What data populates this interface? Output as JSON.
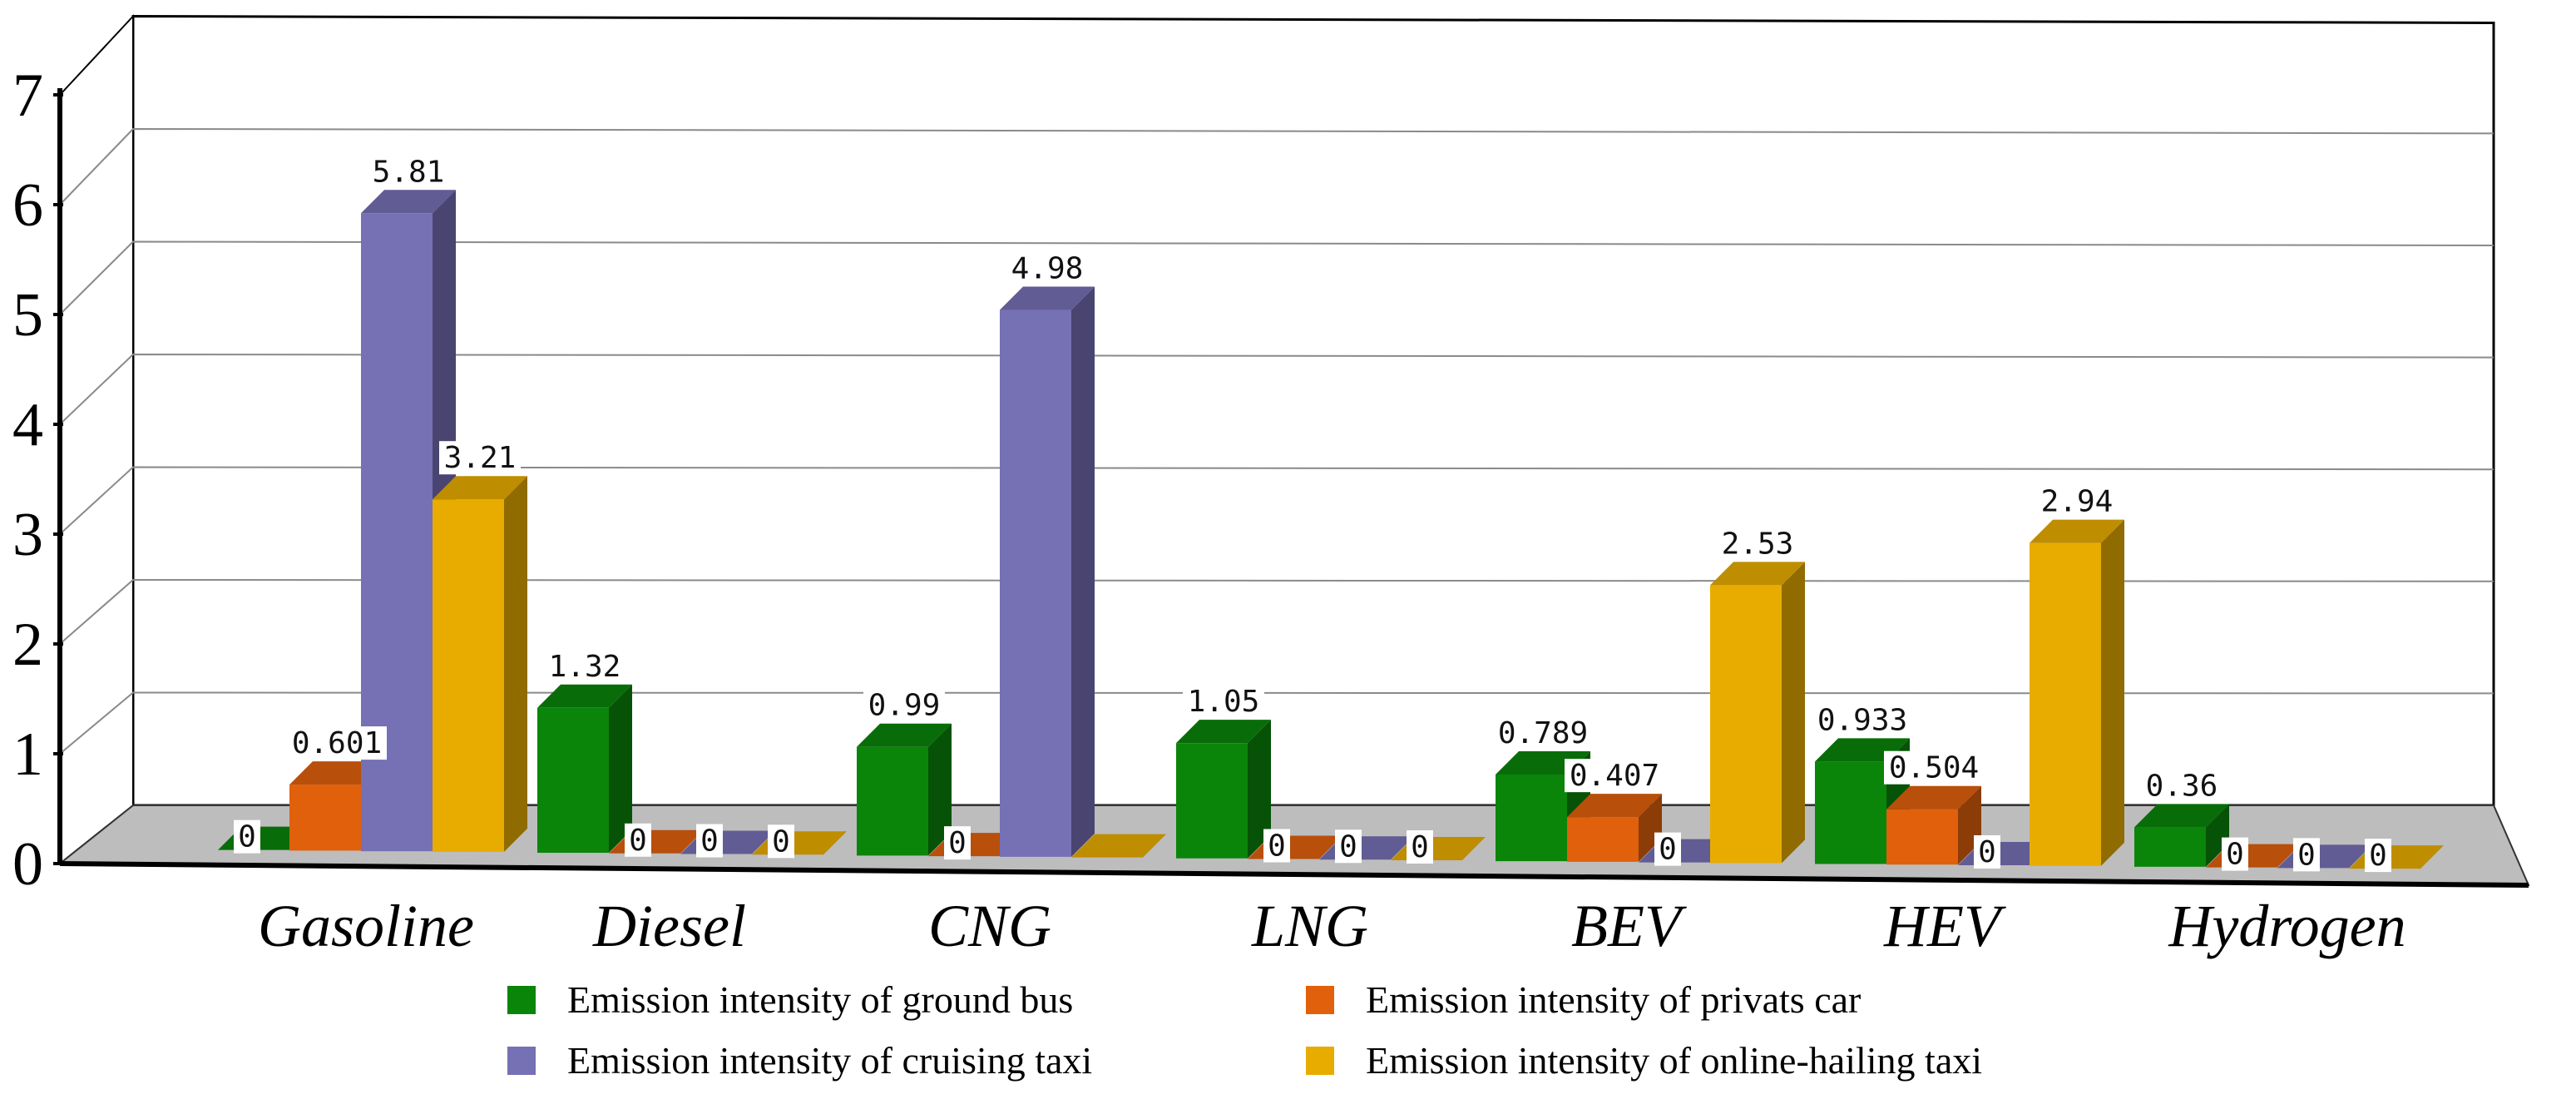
{
  "chart_data": {
    "type": "bar",
    "title": "",
    "xlabel": "",
    "ylabel": "",
    "ylim": [
      0,
      7
    ],
    "yticks": [
      "0",
      "1",
      "2",
      "3",
      "4",
      "5",
      "6",
      "7"
    ],
    "categories": [
      "Gasoline",
      "Diesel",
      "CNG",
      "LNG",
      "BEV",
      "HEV",
      "Hydrogen"
    ],
    "series": [
      {
        "name": "Emission intensity of ground bus",
        "color": "#0a850a",
        "values": [
          0,
          1.32,
          0.99,
          1.05,
          0.789,
          0.933,
          0.36
        ],
        "labels": [
          "0",
          "1.32",
          "0.99",
          "1.05",
          "0.789",
          "0.933",
          "0.36"
        ]
      },
      {
        "name": "Emission intensity of privats car",
        "color": "#e0600c",
        "values": [
          0.601,
          0,
          0,
          0,
          0.407,
          0.504,
          0
        ],
        "labels": [
          "0.601",
          "0",
          "0",
          "0",
          "0.407",
          "0.504",
          "0"
        ]
      },
      {
        "name": "Emission intensity of cruising taxi",
        "color": "#7670b4",
        "values": [
          5.81,
          0,
          4.98,
          0,
          0,
          0,
          0
        ],
        "labels": [
          "5.81",
          "0",
          "4.98",
          "0",
          "0",
          "0",
          "0"
        ]
      },
      {
        "name": "Emission intensity of online-hailing taxi",
        "color": "#e8ac00",
        "values": [
          3.21,
          0,
          0,
          0,
          2.53,
          2.94,
          0
        ],
        "labels": [
          "3.21",
          "0",
          "",
          "0",
          "2.53",
          "2.94",
          "0"
        ]
      }
    ],
    "legend_position": "bottom",
    "grid": true
  }
}
